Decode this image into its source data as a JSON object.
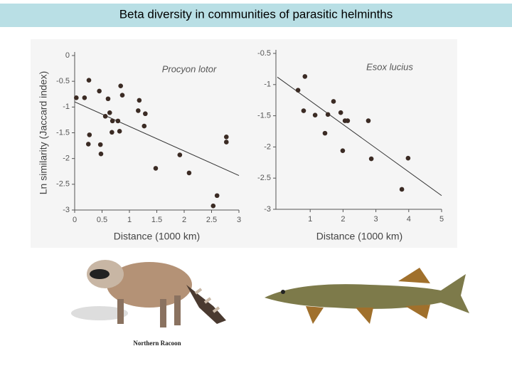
{
  "slide_title": "Beta diversity in communities of parasitic helminths",
  "image_caption": "Northern Racoon",
  "chart_data": [
    {
      "type": "scatter",
      "title": "Procyon lotor",
      "xlabel": "Distance (1000 km)",
      "ylabel": "Ln similarity (Jaccard index)",
      "color": "#3b2b24",
      "x": [
        0.03,
        0.18,
        0.26,
        0.45,
        0.61,
        0.84,
        0.87,
        1.18,
        1.29,
        1.27,
        1.16,
        0.56,
        0.64,
        0.69,
        0.79,
        0.82,
        0.68,
        0.27,
        0.25,
        0.47,
        0.48,
        1.48,
        1.92,
        2.09,
        2.77,
        2.77,
        2.6,
        2.53
      ],
      "values": [
        -0.82,
        -0.82,
        -0.48,
        -0.69,
        -0.84,
        -0.59,
        -0.77,
        -0.87,
        -1.13,
        -1.37,
        -1.07,
        -1.18,
        -1.11,
        -1.27,
        -1.27,
        -1.47,
        -1.49,
        -1.54,
        -1.72,
        -1.73,
        -1.91,
        -2.19,
        -1.93,
        -2.28,
        -1.58,
        -1.68,
        -2.72,
        -2.92
      ],
      "trendline": {
        "x": [
          0,
          3
        ],
        "y": [
          -0.9,
          -2.33
        ]
      },
      "xlim": [
        0,
        3
      ],
      "xticks": [
        0,
        0.5,
        1,
        1.5,
        2,
        2.5,
        3
      ],
      "ylim": [
        -3,
        0
      ],
      "yticks": [
        0,
        -0.5,
        -1,
        -1.5,
        -2,
        -2.5,
        -3
      ]
    },
    {
      "type": "scatter",
      "title": "Esox lucius",
      "xlabel": "Distance (1000 km)",
      "color": "#3b2b24",
      "x": [
        0.63,
        0.84,
        0.8,
        1.15,
        1.45,
        1.54,
        1.71,
        1.93,
        2.06,
        2.14,
        1.99,
        2.77,
        2.86,
        3.98,
        3.79
      ],
      "values": [
        -1.09,
        -0.87,
        -1.42,
        -1.49,
        -1.78,
        -1.48,
        -1.27,
        -1.45,
        -1.58,
        -1.58,
        -2.06,
        -1.58,
        -2.19,
        -2.18,
        -2.68
      ],
      "trendline": {
        "x": [
          0,
          5
        ],
        "y": [
          -0.88,
          -2.78
        ]
      },
      "xlim": [
        0,
        5
      ],
      "xticks": [
        1,
        2,
        3,
        4,
        5
      ],
      "ylim": [
        -3,
        -0.5
      ],
      "yticks": [
        -0.5,
        -1,
        -1.5,
        -2,
        -2.5,
        -3
      ]
    }
  ]
}
